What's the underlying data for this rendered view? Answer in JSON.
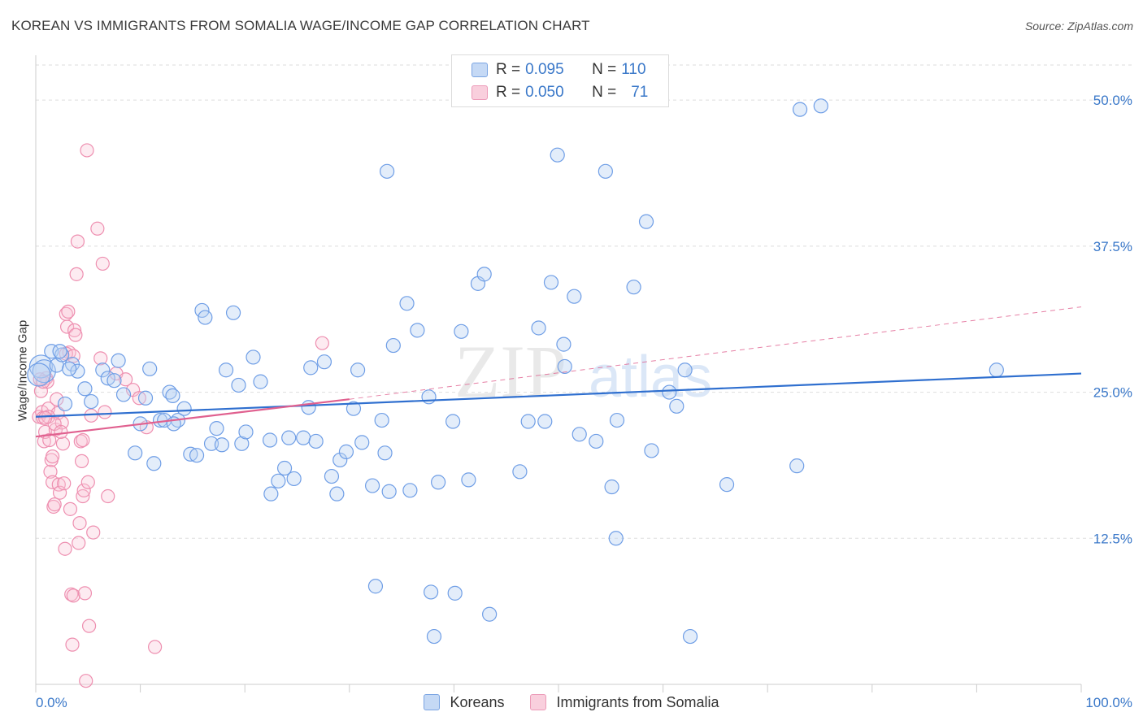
{
  "title": "KOREAN VS IMMIGRANTS FROM SOMALIA WAGE/INCOME GAP CORRELATION CHART",
  "source": "Source: ZipAtlas.com",
  "watermark": {
    "zip": "ZIP",
    "atlas": "atlas"
  },
  "legend_top": [
    {
      "r_label": "R = ",
      "r_value": "0.095",
      "n_label": "N = ",
      "n_value": "110"
    },
    {
      "r_label": "R = ",
      "r_value": "0.050",
      "n_label": "N = ",
      "n_value": "71"
    }
  ],
  "chart_data": {
    "type": "scatter",
    "title": "KOREAN VS IMMIGRANTS FROM SOMALIA WAGE/INCOME GAP CORRELATION CHART",
    "xlabel": "",
    "ylabel": "Wage/Income Gap",
    "xlim": [
      0,
      100
    ],
    "ylim": [
      0,
      53
    ],
    "x_tick_labels": [
      "0.0%",
      "100.0%"
    ],
    "y_ticks": [
      12.5,
      25.0,
      37.5,
      50.0
    ],
    "y_tick_labels": [
      "12.5%",
      "25.0%",
      "37.5%",
      "50.0%"
    ],
    "grid": true,
    "legend_position": "bottom-center",
    "colors": {
      "koreans": "#6f9ee6",
      "somalia": "#ee8fb0",
      "koreans_line": "#2f6fcf",
      "somalia_line": "#e0608f"
    },
    "series": [
      {
        "name": "Koreans",
        "points": [
          [
            0.5,
            27.2
          ],
          [
            0.8,
            26.8
          ],
          [
            1.5,
            28.5
          ],
          [
            2,
            27.3
          ],
          [
            2.5,
            28.2
          ],
          [
            2.8,
            24
          ],
          [
            3.5,
            27.4
          ],
          [
            4,
            26.8
          ],
          [
            4.7,
            25.3
          ],
          [
            5.3,
            24.2
          ],
          [
            6.4,
            26.9
          ],
          [
            6.9,
            26.2
          ],
          [
            7.5,
            26.0
          ],
          [
            7.9,
            27.7
          ],
          [
            8.4,
            24.8
          ],
          [
            9.5,
            19.8
          ],
          [
            10,
            22.3
          ],
          [
            10.5,
            24.5
          ],
          [
            10.9,
            27.0
          ],
          [
            11.3,
            18.9
          ],
          [
            11.9,
            22.6
          ],
          [
            12.3,
            22.6
          ],
          [
            12.8,
            25.0
          ],
          [
            13.1,
            24.7
          ],
          [
            13.6,
            22.6
          ],
          [
            14.2,
            23.6
          ],
          [
            14.8,
            19.7
          ],
          [
            15.4,
            19.6
          ],
          [
            15.9,
            32.0
          ],
          [
            16.2,
            31.4
          ],
          [
            16.8,
            20.6
          ],
          [
            17.3,
            21.9
          ],
          [
            17.8,
            20.5
          ],
          [
            18.2,
            26.9
          ],
          [
            18.9,
            31.8
          ],
          [
            19.4,
            25.6
          ],
          [
            19.7,
            20.6
          ],
          [
            20.1,
            21.6
          ],
          [
            20.8,
            28.0
          ],
          [
            21.5,
            25.9
          ],
          [
            22.5,
            16.3
          ],
          [
            22.4,
            20.9
          ],
          [
            23.2,
            17.4
          ],
          [
            23.8,
            18.5
          ],
          [
            24.2,
            21.1
          ],
          [
            24.7,
            17.6
          ],
          [
            25.6,
            21.1
          ],
          [
            26.1,
            23.7
          ],
          [
            26.3,
            27.1
          ],
          [
            26.8,
            20.8
          ],
          [
            27.6,
            27.6
          ],
          [
            28.3,
            17.8
          ],
          [
            28.8,
            16.3
          ],
          [
            29.1,
            19.2
          ],
          [
            29.7,
            19.9
          ],
          [
            30.4,
            23.6
          ],
          [
            30.8,
            26.9
          ],
          [
            31.2,
            20.7
          ],
          [
            32.2,
            17.0
          ],
          [
            32.5,
            8.4
          ],
          [
            33.1,
            22.6
          ],
          [
            33.4,
            19.8
          ],
          [
            33.8,
            16.5
          ],
          [
            33.6,
            43.9
          ],
          [
            34.2,
            29.0
          ],
          [
            35.5,
            32.6
          ],
          [
            35.8,
            16.6
          ],
          [
            36.5,
            30.3
          ],
          [
            37.6,
            24.6
          ],
          [
            37.8,
            7.9
          ],
          [
            38.1,
            4.1
          ],
          [
            38.5,
            17.3
          ],
          [
            39.9,
            22.5
          ],
          [
            40.1,
            7.8
          ],
          [
            40.7,
            30.2
          ],
          [
            41.4,
            17.5
          ],
          [
            42.3,
            34.3
          ],
          [
            42.9,
            35.1
          ],
          [
            43.4,
            6.0
          ],
          [
            46.3,
            18.2
          ],
          [
            47.1,
            22.5
          ],
          [
            48.1,
            30.5
          ],
          [
            48.7,
            22.5
          ],
          [
            49.3,
            34.4
          ],
          [
            49.9,
            45.3
          ],
          [
            50.5,
            29.1
          ],
          [
            50.6,
            27.2
          ],
          [
            51.5,
            33.2
          ],
          [
            52.0,
            21.4
          ],
          [
            53.6,
            20.8
          ],
          [
            54.5,
            43.9
          ],
          [
            55.6,
            22.6
          ],
          [
            55.1,
            16.9
          ],
          [
            55.5,
            12.5
          ],
          [
            58.4,
            39.6
          ],
          [
            57.2,
            34.0
          ],
          [
            58.9,
            20.0
          ],
          [
            60.6,
            25.0
          ],
          [
            61.3,
            23.8
          ],
          [
            62.1,
            26.9
          ],
          [
            62.6,
            4.1
          ],
          [
            66.1,
            17.1
          ],
          [
            72.8,
            18.7
          ],
          [
            73.1,
            49.2
          ],
          [
            75.1,
            49.5
          ],
          [
            91.9,
            26.9
          ],
          [
            0.3,
            26.5
          ],
          [
            2.3,
            28.5
          ],
          [
            3.2,
            27.0
          ],
          [
            13.2,
            22.3
          ]
        ]
      },
      {
        "name": "Immigrants from Somalia",
        "points": [
          [
            0.3,
            22.9
          ],
          [
            0.5,
            25.1
          ],
          [
            0.6,
            23.3
          ],
          [
            0.7,
            22.8
          ],
          [
            0.8,
            20.8
          ],
          [
            0.9,
            21.6
          ],
          [
            1.0,
            26.2
          ],
          [
            1.1,
            25.9
          ],
          [
            1.2,
            23.6
          ],
          [
            1.3,
            20.9
          ],
          [
            1.4,
            18.2
          ],
          [
            1.5,
            19.2
          ],
          [
            1.6,
            17.3
          ],
          [
            1.7,
            15.2
          ],
          [
            1.8,
            15.4
          ],
          [
            1.9,
            21.8
          ],
          [
            2.0,
            24.4
          ],
          [
            2.1,
            23.2
          ],
          [
            2.2,
            17.1
          ],
          [
            2.3,
            16.4
          ],
          [
            2.5,
            22.4
          ],
          [
            2.6,
            20.6
          ],
          [
            2.7,
            17.2
          ],
          [
            2.8,
            11.6
          ],
          [
            2.9,
            31.7
          ],
          [
            3.0,
            30.6
          ],
          [
            3.1,
            31.9
          ],
          [
            3.2,
            28.4
          ],
          [
            3.3,
            15.0
          ],
          [
            3.4,
            7.7
          ],
          [
            3.5,
            3.4
          ],
          [
            3.6,
            7.6
          ],
          [
            3.7,
            30.3
          ],
          [
            3.8,
            29.9
          ],
          [
            3.9,
            35.1
          ],
          [
            4.0,
            37.9
          ],
          [
            4.1,
            12.1
          ],
          [
            4.2,
            13.8
          ],
          [
            4.3,
            20.8
          ],
          [
            4.4,
            19.1
          ],
          [
            4.5,
            16.1
          ],
          [
            4.6,
            16.6
          ],
          [
            4.7,
            7.8
          ],
          [
            4.8,
            0.3
          ],
          [
            4.9,
            45.7
          ],
          [
            5.0,
            17.3
          ],
          [
            5.1,
            5.0
          ],
          [
            5.5,
            13.0
          ],
          [
            5.3,
            23.0
          ],
          [
            5.9,
            39.0
          ],
          [
            6.2,
            27.9
          ],
          [
            6.4,
            36.0
          ],
          [
            6.6,
            23.3
          ],
          [
            6.9,
            16.1
          ],
          [
            7.7,
            26.6
          ],
          [
            8.6,
            26.1
          ],
          [
            9.3,
            25.2
          ],
          [
            9.9,
            24.5
          ],
          [
            10.6,
            22.0
          ],
          [
            11.4,
            3.2
          ],
          [
            27.4,
            29.2
          ],
          [
            0.4,
            26.1
          ],
          [
            1.2,
            22.9
          ],
          [
            1.8,
            22.3
          ],
          [
            2.4,
            21.6
          ],
          [
            0.7,
            25.9
          ],
          [
            1.6,
            19.5
          ],
          [
            2.9,
            28.3
          ],
          [
            3.6,
            28.1
          ],
          [
            4.5,
            20.9
          ],
          [
            0.9,
            22.8
          ]
        ]
      }
    ],
    "trend_lines": [
      {
        "series": "Koreans",
        "x": [
          0,
          100
        ],
        "y": [
          22.9,
          26.6
        ]
      },
      {
        "series": "Immigrants from Somalia",
        "x": [
          0,
          30
        ],
        "y": [
          21.2,
          24.4
        ]
      },
      {
        "series": "Immigrants from Somalia (extrapolated)",
        "x": [
          30,
          100
        ],
        "y": [
          24.4,
          32.3
        ]
      }
    ]
  },
  "legend_bottom": [
    "Koreans",
    "Immigrants from Somalia"
  ]
}
